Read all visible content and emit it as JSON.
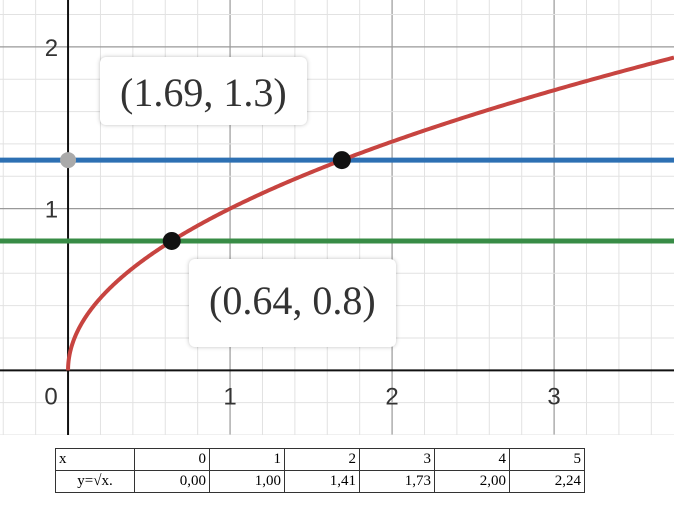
{
  "chart_data": {
    "type": "line",
    "function": "y = sqrt(x)",
    "xlim": [
      -0.42,
      3.74
    ],
    "ylim": [
      -0.4,
      2.29
    ],
    "grid": true,
    "x_ticks": [
      "0",
      "1",
      "2",
      "3"
    ],
    "y_ticks": [
      "1",
      "2"
    ],
    "series": [
      {
        "expr": "sqrt(x)",
        "color": "#c74440"
      },
      {
        "expr": "y=1.3",
        "color": "#2d70b3"
      },
      {
        "expr": "y=0.8",
        "color": "#388c46"
      }
    ],
    "points": [
      {
        "x": 1.69,
        "y": 1.3,
        "label": "(1.69, 1.3)"
      },
      {
        "x": 0.64,
        "y": 0.8,
        "label": "(0.64, 0.8)"
      }
    ],
    "intercept_point": {
      "x": 0,
      "y": 1.3,
      "color": "#aaaaaa"
    }
  },
  "table": {
    "header": "x",
    "row_label": "y=√x.",
    "x": [
      "0",
      "1",
      "2",
      "3",
      "4",
      "5"
    ],
    "y": [
      "0,00",
      "1,00",
      "1,41",
      "1,73",
      "2,00",
      "2,24"
    ]
  }
}
